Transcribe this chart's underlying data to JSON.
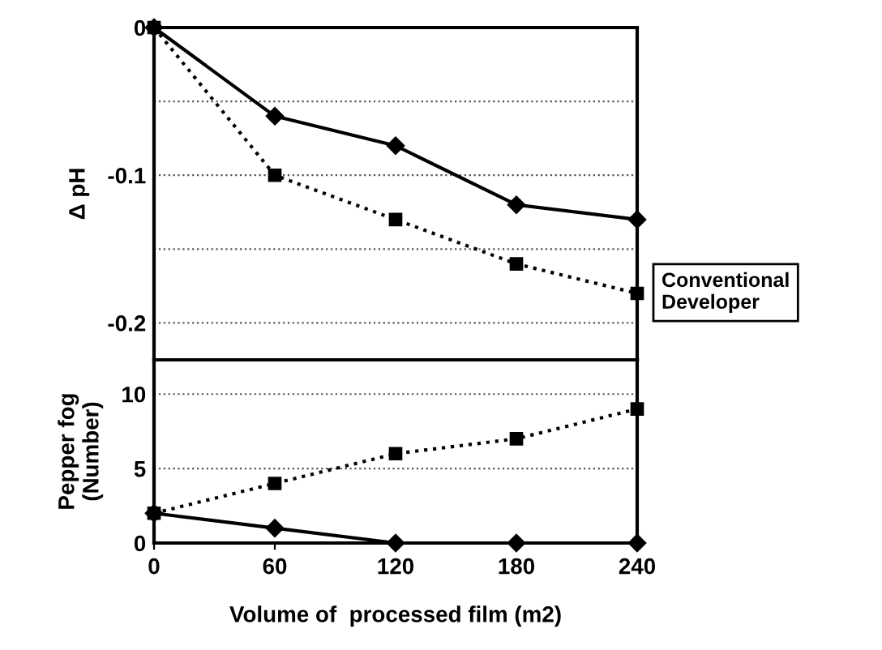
{
  "chart_data": [
    {
      "type": "line",
      "ylabel": "Δ pH",
      "x": [
        0,
        60,
        120,
        180,
        240
      ],
      "xlim": [
        0,
        240
      ],
      "xticks": [
        0,
        60,
        120,
        180,
        240
      ],
      "ylim": [
        -0.225,
        0
      ],
      "yticks": [
        0,
        {
          "value": -0.05,
          "label": null
        },
        -0.1,
        {
          "value": -0.15,
          "label": null
        },
        -0.2
      ],
      "grid": "y",
      "tick_labels": "y",
      "series": [
        {
          "color": "#000000",
          "values": [
            0,
            -0.06,
            -0.08,
            -0.12,
            -0.13
          ],
          "marker": "diamond",
          "line_style": "solid"
        },
        {
          "name": "Conventional Developer",
          "color": "#000000",
          "values": [
            0,
            -0.1,
            -0.13,
            -0.16,
            -0.18
          ],
          "marker": "square",
          "line_style": "dotted"
        }
      ]
    },
    {
      "type": "line",
      "ylabel": "Pepper fog\n(Number)",
      "xlabel": "Volume of  processed film (m2)",
      "x": [
        0,
        60,
        120,
        180,
        240
      ],
      "xlim": [
        0,
        240
      ],
      "xticks": [
        0,
        60,
        120,
        180,
        240
      ],
      "ylim": [
        0,
        12.3
      ],
      "yticks": [
        0,
        5,
        10
      ],
      "grid": "y",
      "series": [
        {
          "color": "#000000",
          "values": [
            2,
            1,
            0,
            0,
            0
          ],
          "marker": "diamond",
          "line_style": "solid"
        },
        {
          "color": "#000000",
          "values": [
            2,
            4,
            6,
            7,
            9
          ],
          "marker": "square",
          "line_style": "dotted"
        }
      ]
    }
  ]
}
